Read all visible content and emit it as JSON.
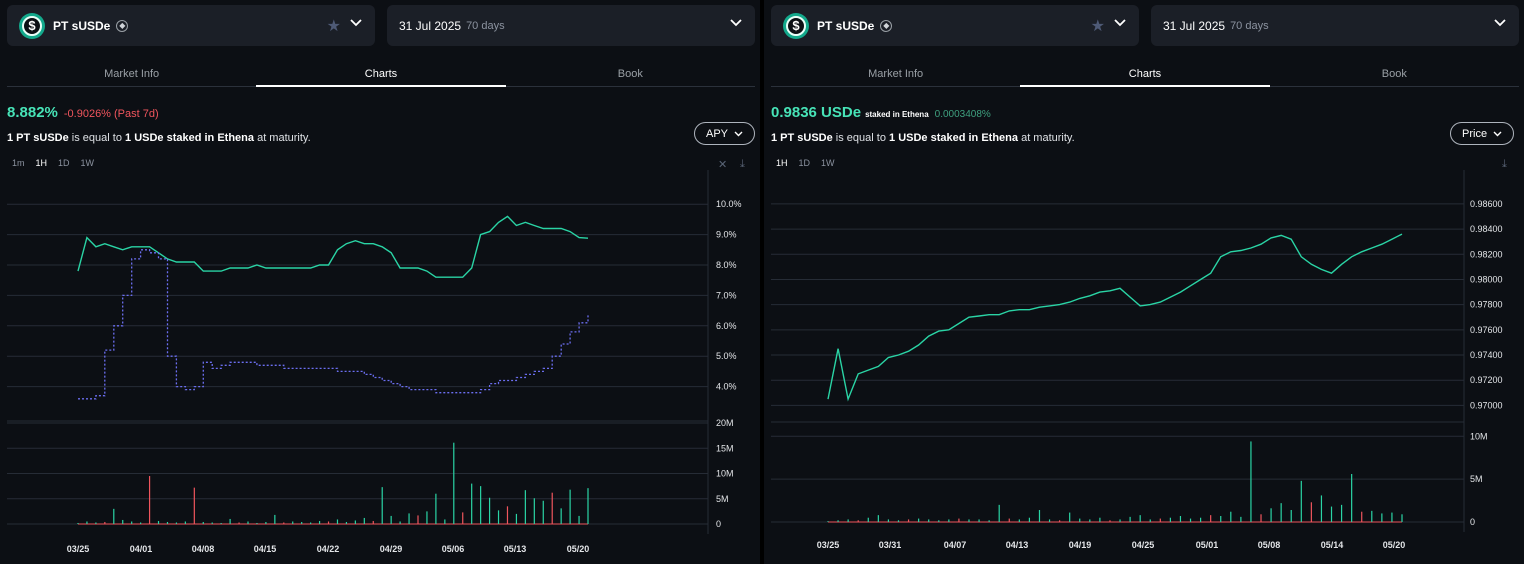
{
  "panels": [
    {
      "asset": {
        "name": "PT sUSDe",
        "coin_symbol": "$",
        "chain_icon": "ethereum-icon"
      },
      "maturity": {
        "date": "31 Jul 2025",
        "days": "70 days"
      },
      "tabs": [
        "Market Info",
        "Charts",
        "Book"
      ],
      "active_tab": "Charts",
      "headline": {
        "value": "8.882%",
        "change": "-0.9026% (Past 7d)"
      },
      "equivalence": {
        "p1": "1 PT sUSDe",
        "p2": " is equal to ",
        "p3": "1 USDe staked in Ethena",
        "p4": " at maturity."
      },
      "metric_dropdown": "APY",
      "ranges": [
        "1m",
        "1H",
        "1D",
        "1W"
      ],
      "active_range": "1H"
    },
    {
      "asset": {
        "name": "PT sUSDe",
        "coin_symbol": "$",
        "chain_icon": "ethereum-icon"
      },
      "maturity": {
        "date": "31 Jul 2025",
        "days": "70 days"
      },
      "tabs": [
        "Market Info",
        "Charts",
        "Book"
      ],
      "active_tab": "Charts",
      "headline": {
        "value": "0.9836 USDe",
        "staked": "staked in Ethena",
        "change": "0.0003408%"
      },
      "equivalence": {
        "p1": "1 PT sUSDe",
        "p2": " is equal to ",
        "p3": "1 USDe staked in Ethena",
        "p4": " at maturity."
      },
      "metric_dropdown": "Price",
      "ranges": [
        "1H",
        "1D",
        "1W"
      ],
      "active_range": "1H"
    }
  ],
  "colors": {
    "implied_apy": "#2ad4a5",
    "underlying_apy": "#6b6ef0",
    "volume_up": "#2ad4a5",
    "volume_down": "#f0555d",
    "dropdown_border": "#aeb4bd"
  },
  "chart_data": [
    {
      "type": "line",
      "x": [
        "03/25",
        "03/26",
        "03/27",
        "03/28",
        "03/29",
        "03/30",
        "03/31",
        "04/01",
        "04/02",
        "04/03",
        "04/04",
        "04/05",
        "04/06",
        "04/07",
        "04/08",
        "04/09",
        "04/10",
        "04/11",
        "04/12",
        "04/13",
        "04/14",
        "04/15",
        "04/16",
        "04/17",
        "04/18",
        "04/19",
        "04/20",
        "04/21",
        "04/22",
        "04/23",
        "04/24",
        "04/25",
        "04/26",
        "04/27",
        "04/28",
        "04/29",
        "04/30",
        "05/01",
        "05/02",
        "05/03",
        "05/04",
        "05/05",
        "05/06",
        "05/07",
        "05/08",
        "05/09",
        "05/10",
        "05/11",
        "05/12",
        "05/13",
        "05/14",
        "05/15",
        "05/16",
        "05/17",
        "05/18",
        "05/19",
        "05/20",
        "05/21"
      ],
      "series": [
        {
          "values": [
            7.8,
            8.9,
            8.6,
            8.7,
            8.6,
            8.5,
            8.6,
            8.6,
            8.6,
            8.4,
            8.2,
            8.1,
            8.1,
            8.1,
            7.8,
            7.8,
            7.8,
            7.9,
            7.9,
            7.9,
            8.0,
            7.9,
            7.9,
            7.9,
            7.9,
            7.9,
            7.9,
            8.0,
            8.0,
            8.5,
            8.7,
            8.8,
            8.7,
            8.7,
            8.6,
            8.4,
            7.9,
            7.9,
            7.9,
            7.8,
            7.6,
            7.6,
            7.6,
            7.6,
            7.9,
            9.0,
            9.1,
            9.4,
            9.6,
            9.3,
            9.4,
            9.3,
            9.2,
            9.2,
            9.2,
            9.1,
            8.9,
            8.88
          ]
        },
        {
          "values": [
            3.6,
            3.6,
            3.7,
            5.2,
            6.0,
            7.0,
            8.2,
            8.5,
            8.4,
            8.2,
            5.0,
            4.0,
            3.9,
            4.0,
            4.8,
            4.6,
            4.7,
            4.8,
            4.8,
            4.8,
            4.7,
            4.7,
            4.7,
            4.6,
            4.6,
            4.6,
            4.6,
            4.6,
            4.6,
            4.5,
            4.5,
            4.5,
            4.4,
            4.3,
            4.2,
            4.1,
            4.0,
            3.9,
            3.9,
            3.9,
            3.8,
            3.8,
            3.8,
            3.8,
            3.8,
            3.9,
            4.1,
            4.2,
            4.2,
            4.3,
            4.4,
            4.5,
            4.6,
            5.0,
            5.4,
            5.8,
            6.1,
            6.4
          ]
        }
      ],
      "yticks": [
        "10.0%",
        "9.0%",
        "8.0%",
        "7.0%",
        "6.0%",
        "5.0%",
        "4.0%"
      ],
      "ylim": [
        3.0,
        10.5
      ],
      "xticks": [
        "03/25",
        "04/01",
        "04/08",
        "04/15",
        "04/22",
        "04/29",
        "05/06",
        "05/13",
        "05/20"
      ],
      "volume": {
        "yticks": [
          "20M",
          "15M",
          "10M",
          "5M",
          "0"
        ],
        "ylim": [
          0,
          20
        ],
        "values": [
          0.2,
          0.5,
          0.3,
          0.4,
          3.0,
          0.8,
          0.5,
          0.3,
          9.5,
          0.6,
          0.4,
          0.3,
          0.5,
          7.2,
          0.4,
          0.3,
          0.2,
          1.0,
          0.3,
          0.5,
          0.2,
          0.4,
          1.8,
          0.3,
          0.5,
          0.4,
          0.3,
          0.6,
          0.5,
          0.9,
          0.4,
          0.7,
          1.2,
          0.6,
          7.3,
          1.6,
          0.5,
          2.1,
          1.7,
          2.5,
          6.0,
          0.9,
          16.1,
          2.3,
          8.0,
          7.5,
          5.2,
          2.7,
          3.5,
          2.0,
          6.7,
          5.1,
          4.6,
          6.2,
          3.1,
          6.8,
          1.6,
          7.1
        ]
      }
    },
    {
      "type": "line",
      "x": [
        "03/25",
        "03/26",
        "03/27",
        "03/28",
        "03/29",
        "03/30",
        "03/31",
        "04/01",
        "04/02",
        "04/03",
        "04/04",
        "04/05",
        "04/06",
        "04/07",
        "04/08",
        "04/09",
        "04/10",
        "04/11",
        "04/12",
        "04/13",
        "04/14",
        "04/15",
        "04/16",
        "04/17",
        "04/18",
        "04/19",
        "04/20",
        "04/21",
        "04/22",
        "04/23",
        "04/24",
        "04/25",
        "04/26",
        "04/27",
        "04/28",
        "04/29",
        "04/30",
        "05/01",
        "05/02",
        "05/03",
        "05/04",
        "05/05",
        "05/06",
        "05/07",
        "05/08",
        "05/09",
        "05/10",
        "05/11",
        "05/12",
        "05/13",
        "05/14",
        "05/15",
        "05/16",
        "05/17",
        "05/18",
        "05/19",
        "05/20",
        "05/21"
      ],
      "series": [
        {
          "values": [
            0.9705,
            0.9745,
            0.9705,
            0.9725,
            0.9728,
            0.9731,
            0.9738,
            0.974,
            0.9743,
            0.9748,
            0.9755,
            0.9759,
            0.976,
            0.9765,
            0.977,
            0.9771,
            0.9772,
            0.9772,
            0.9775,
            0.9776,
            0.9776,
            0.9778,
            0.9779,
            0.978,
            0.9782,
            0.9785,
            0.9787,
            0.979,
            0.9791,
            0.9793,
            0.9786,
            0.9779,
            0.978,
            0.9782,
            0.9786,
            0.979,
            0.9795,
            0.98,
            0.9805,
            0.9818,
            0.9822,
            0.9823,
            0.9825,
            0.9828,
            0.9833,
            0.9835,
            0.9832,
            0.9818,
            0.9812,
            0.9808,
            0.9805,
            0.9812,
            0.9818,
            0.9822,
            0.9825,
            0.9828,
            0.9832,
            0.9836
          ]
        }
      ],
      "yticks": [
        "0.98600",
        "0.98400",
        "0.98200",
        "0.98000",
        "0.97800",
        "0.97600",
        "0.97400",
        "0.97200",
        "0.97000"
      ],
      "ylim": [
        0.969,
        0.9875
      ],
      "xticks": [
        "03/25",
        "03/31",
        "04/07",
        "04/13",
        "04/19",
        "04/25",
        "05/01",
        "05/08",
        "05/14",
        "05/20"
      ],
      "volume": {
        "yticks": [
          "10M",
          "5M",
          "0"
        ],
        "ylim": [
          0,
          10.5
        ],
        "values": [
          0.1,
          0.2,
          0.3,
          0.2,
          0.5,
          0.8,
          0.3,
          0.2,
          0.3,
          0.4,
          0.3,
          0.2,
          0.3,
          0.4,
          0.3,
          0.3,
          0.2,
          2.0,
          0.4,
          0.3,
          0.5,
          1.4,
          0.3,
          0.2,
          1.1,
          0.4,
          0.3,
          0.5,
          0.2,
          0.3,
          0.6,
          0.8,
          0.3,
          0.4,
          0.5,
          0.7,
          0.4,
          0.5,
          0.8,
          0.7,
          1.2,
          0.6,
          9.4,
          0.9,
          1.6,
          2.2,
          1.4,
          4.8,
          2.3,
          3.1,
          1.8,
          2.0,
          5.6,
          1.2,
          1.3,
          1.0,
          1.1,
          0.9
        ]
      }
    }
  ]
}
